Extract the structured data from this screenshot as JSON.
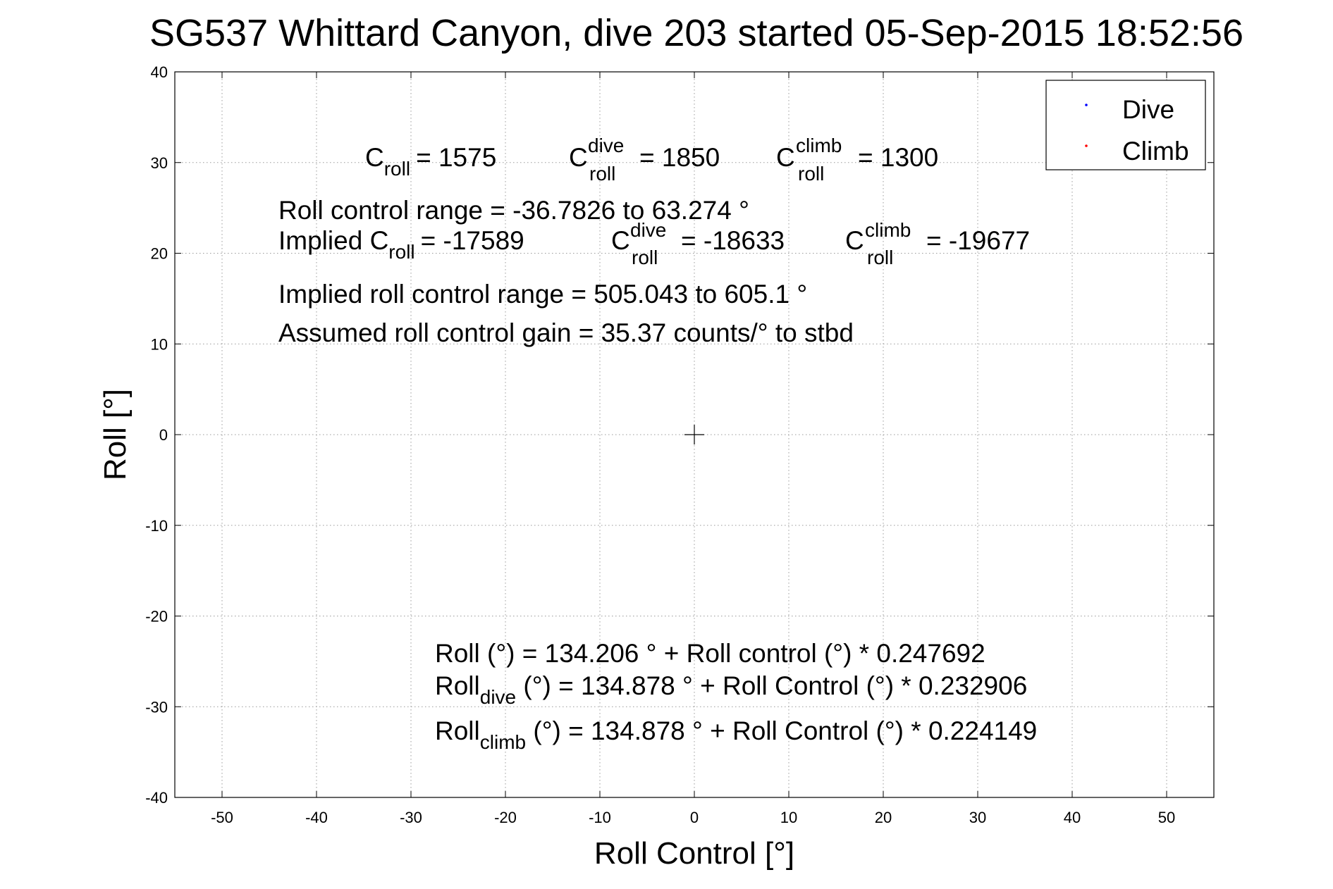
{
  "chart_data": {
    "type": "scatter",
    "title": "SG537 Whittard Canyon, dive 203 started 05-Sep-2015 18:52:56",
    "xlabel": "Roll Control [°]",
    "ylabel": "Roll [°]",
    "xlim": [
      -55,
      55
    ],
    "ylim": [
      -40,
      40
    ],
    "xticks": [
      -50,
      -40,
      -30,
      -20,
      -10,
      0,
      10,
      20,
      30,
      40,
      50
    ],
    "yticks": [
      -40,
      -30,
      -20,
      -10,
      0,
      10,
      20,
      30,
      40
    ],
    "grid": true,
    "legend": {
      "position": "top-right",
      "entries": [
        {
          "name": "Dive",
          "color": "#0000ff"
        },
        {
          "name": "Climb",
          "color": "#ff0000"
        }
      ]
    },
    "series": [
      {
        "name": "Dive",
        "color": "#0000ff",
        "points": []
      },
      {
        "name": "Climb",
        "color": "#ff0000",
        "points": []
      }
    ],
    "center_marker": {
      "x": 0,
      "y": 0,
      "symbol": "+"
    },
    "annotations": {
      "c_roll": {
        "base": "C",
        "sub": "roll",
        "value": "= 1575"
      },
      "c_roll_dive": {
        "base": "C",
        "sup": "dive",
        "sub": "roll",
        "value": "= 1850"
      },
      "c_roll_climb": {
        "base": "C",
        "sup": "climb",
        "sub": "roll",
        "value": "= 1300"
      },
      "roll_control_range": "Roll control range = -36.7826 to 63.274 °",
      "implied_prefix": "Implied ",
      "implied_c_roll": {
        "base": "C",
        "sub": "roll",
        "value": "= -17589"
      },
      "implied_c_roll_dive": {
        "base": "C",
        "sup": "dive",
        "sub": "roll",
        "value": "= -18633"
      },
      "implied_c_roll_climb": {
        "base": "C",
        "sup": "climb",
        "sub": "roll",
        "value": "= -19677"
      },
      "implied_range": "Implied roll control range = 505.043 to 605.1 °",
      "gain": "Assumed roll control gain = 35.37 counts/° to stbd",
      "fit_all": "Roll (°) = 134.206 ° + Roll control (°) * 0.247692",
      "fit_dive": {
        "base": "Roll",
        "sub": "dive",
        "rest": " (°) = 134.878 ° + Roll Control (°) * 0.232906"
      },
      "fit_climb": {
        "base": "Roll",
        "sub": "climb",
        "rest": " (°) = 134.878 ° + Roll Control (°) * 0.224149"
      }
    }
  }
}
